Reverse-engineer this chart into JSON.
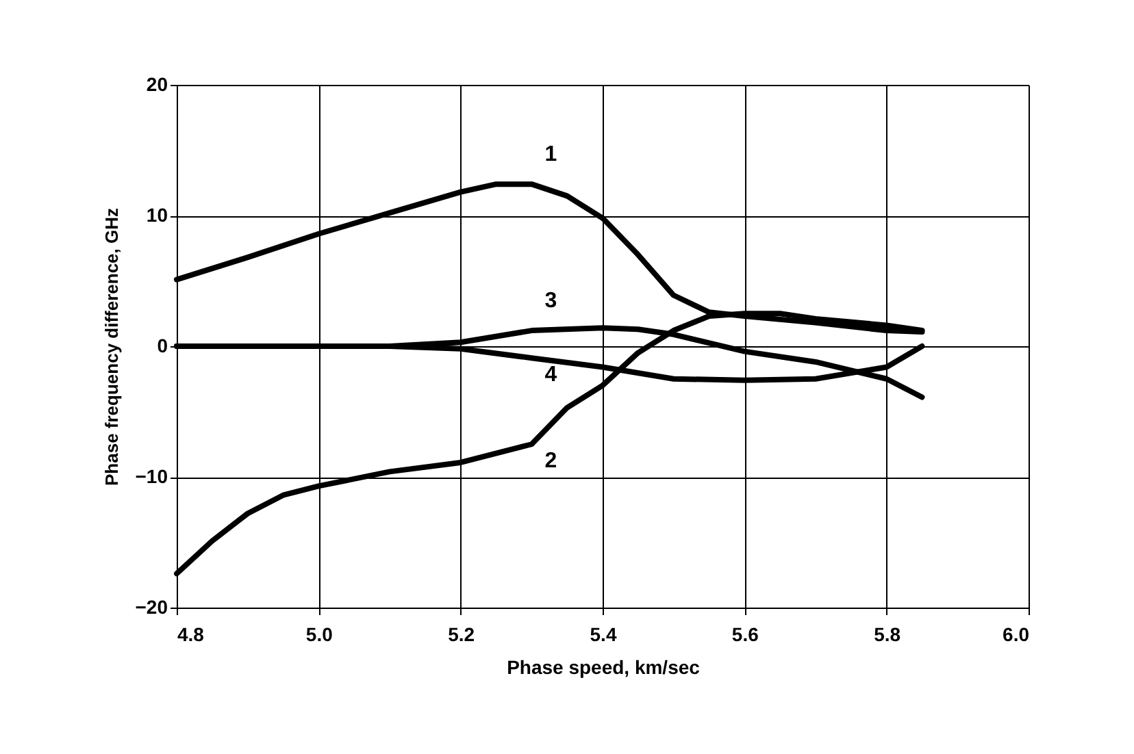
{
  "chart_data": {
    "type": "line",
    "xlabel": "Phase speed,  km/sec",
    "ylabel": "Phase frequency difference,  GHz",
    "xlim": [
      4.8,
      6.0
    ],
    "xticks": [
      {
        "value": 4.8,
        "label": "4.8"
      },
      {
        "value": 5.0,
        "label": "5.0"
      },
      {
        "value": 5.2,
        "label": "5.2"
      },
      {
        "value": 5.4,
        "label": "5.4"
      },
      {
        "value": 5.6,
        "label": "5.6"
      },
      {
        "value": 5.8,
        "label": "5.8"
      },
      {
        "value": 6.0,
        "label": "6.0"
      }
    ],
    "ylim": [
      -20,
      20
    ],
    "yticks": [
      -20,
      -10,
      0,
      10,
      20
    ],
    "grid": true,
    "legend": false,
    "marker": "none",
    "line_style": "solid",
    "series": [
      {
        "name": "1",
        "color": "#000000",
        "x": [
          4.8,
          4.9,
          5.0,
          5.1,
          5.2,
          5.25,
          5.3,
          5.35,
          5.4,
          5.45,
          5.5,
          5.55,
          5.6,
          5.7,
          5.8,
          5.85
        ],
        "values": [
          5.1,
          6.8,
          8.6,
          10.2,
          11.8,
          12.4,
          12.4,
          11.5,
          9.8,
          7,
          3.9,
          2.6,
          2.3,
          1.8,
          1.2,
          1.1
        ]
      },
      {
        "name": "2",
        "color": "#000000",
        "x": [
          4.8,
          4.85,
          4.9,
          4.95,
          5.0,
          5.1,
          5.2,
          5.3,
          5.35,
          5.4,
          5.45,
          5.5,
          5.55,
          5.6,
          5.65,
          5.7,
          5.8,
          5.85
        ],
        "values": [
          -17.4,
          -14.9,
          -12.8,
          -11.4,
          -10.7,
          -9.6,
          -8.9,
          -7.5,
          -4.7,
          -3.0,
          -0.5,
          1.2,
          2.3,
          2.5,
          2.5,
          2.1,
          1.6,
          1.2
        ]
      },
      {
        "name": "3",
        "color": "#000000",
        "x": [
          4.8,
          5.0,
          5.1,
          5.2,
          5.3,
          5.4,
          5.45,
          5.5,
          5.6,
          5.7,
          5.8,
          5.85
        ],
        "values": [
          0,
          0,
          0,
          0.3,
          1.2,
          1.4,
          1.3,
          0.9,
          -0.4,
          -1.2,
          -2.5,
          -3.9
        ]
      },
      {
        "name": "4",
        "color": "#000000",
        "x": [
          4.8,
          5.0,
          5.1,
          5.2,
          5.3,
          5.4,
          5.5,
          5.6,
          5.7,
          5.8,
          5.85
        ],
        "values": [
          0,
          0,
          0,
          -0.2,
          -0.9,
          -1.6,
          -2.5,
          -2.6,
          -2.5,
          -1.6,
          0
        ]
      }
    ]
  }
}
